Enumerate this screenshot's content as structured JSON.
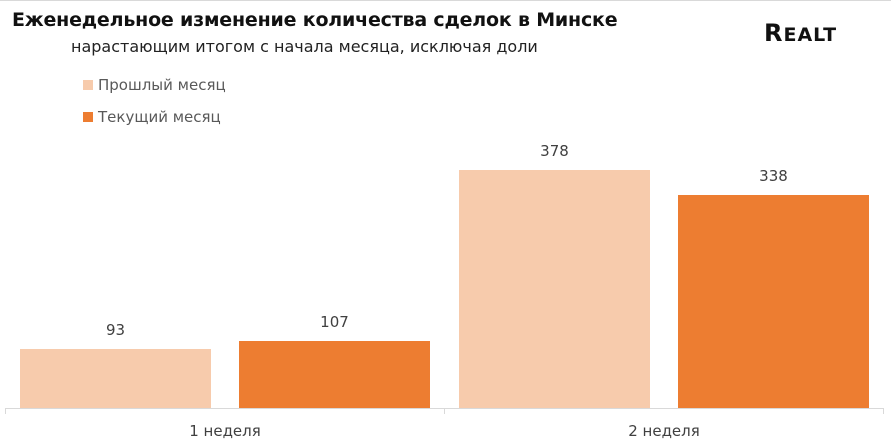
{
  "header": {
    "title": "Еженедельное изменение количества сделок в Минске",
    "subtitle": "нарастающим итогом с начала месяца, исключая доли",
    "logo": "REALT"
  },
  "legend": {
    "items": [
      {
        "label": "Прошлый месяц",
        "color": "#F7CBAC"
      },
      {
        "label": "Текущий месяц",
        "color": "#ED7D31"
      }
    ]
  },
  "colors": {
    "previous_month": "#F7CBAC",
    "current_month": "#ED7D31",
    "axis": "#D9D9D9",
    "label_text": "#404040"
  },
  "chart_data": {
    "type": "bar",
    "title": "Еженедельное изменение количества сделок в Минске",
    "subtitle": "нарастающим итогом с начала месяца, исключая доли",
    "categories": [
      "1 неделя",
      "2 неделя"
    ],
    "series": [
      {
        "name": "Прошлый месяц",
        "values": [
          93,
          378
        ],
        "color": "#F7CBAC"
      },
      {
        "name": "Текущий месяц",
        "values": [
          107,
          338
        ],
        "color": "#ED7D31"
      }
    ],
    "data_labels": [
      [
        "93",
        "378"
      ],
      [
        "107",
        "338"
      ]
    ],
    "xlabel": "",
    "ylabel": "",
    "ylim": [
      0,
      378
    ],
    "grid": false,
    "legend_position": "top-left"
  }
}
